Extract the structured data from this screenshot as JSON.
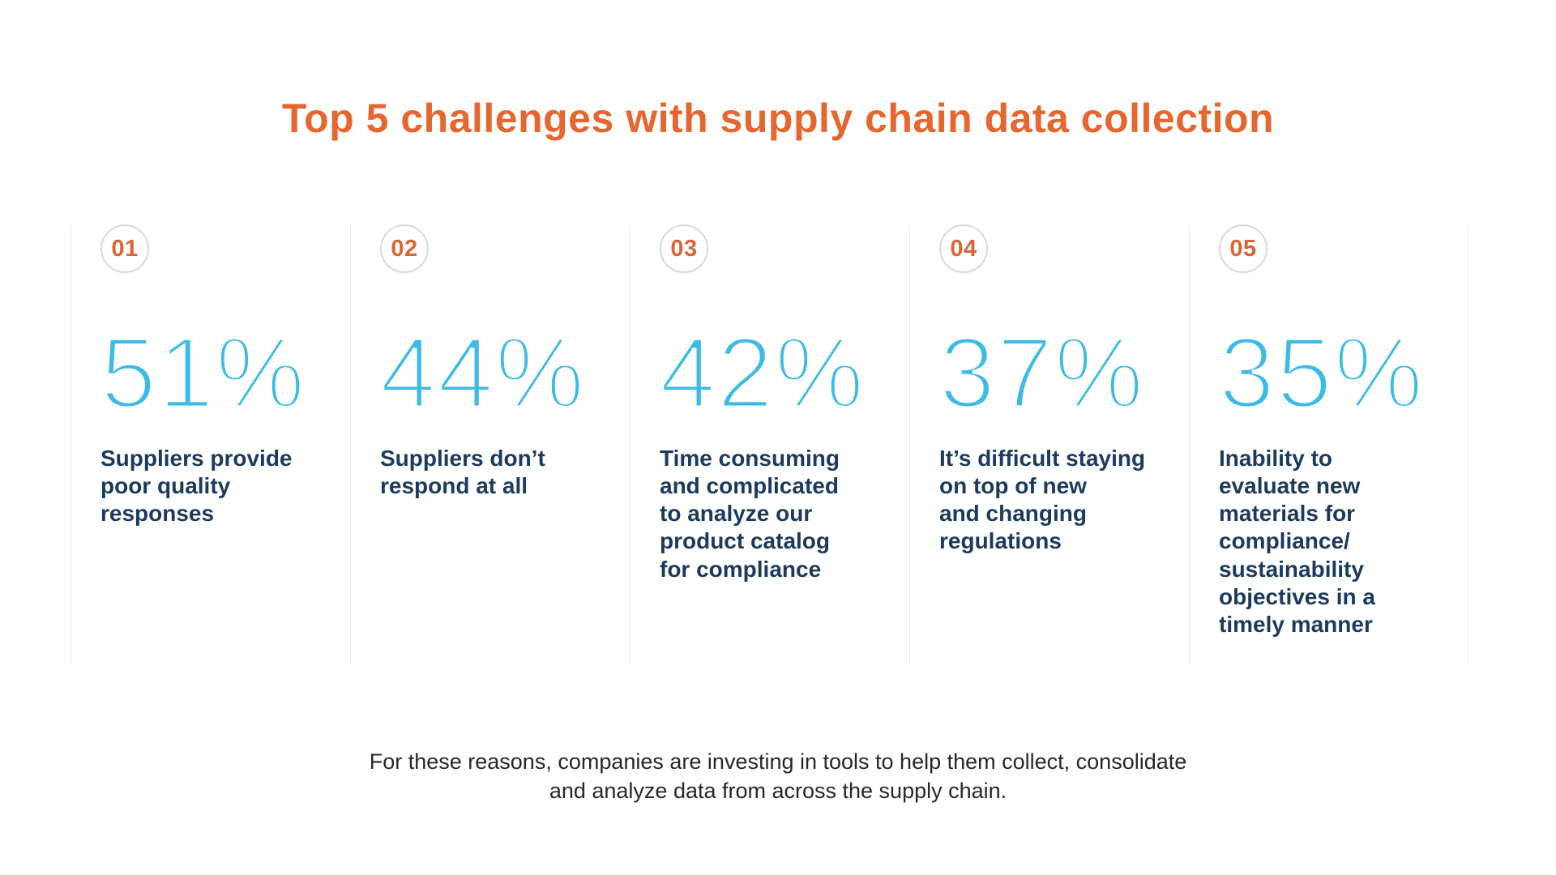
{
  "title": "Top 5 challenges with supply chain data collection",
  "colors": {
    "accent-orange": "#E5672F",
    "badge-orange": "#DC6434",
    "stat-blue": "#3DBAE6",
    "navy": "#1B3A5E",
    "divider": "#E9E9E9",
    "badge-border": "#D9D9D9",
    "footer-text": "#26272B",
    "bg": "#FFFFFF"
  },
  "challenges": [
    {
      "number": "01",
      "percent": "51%",
      "description": "Suppliers provide\npoor quality\nresponses"
    },
    {
      "number": "02",
      "percent": "44%",
      "description": "Suppliers don’t\nrespond at all"
    },
    {
      "number": "03",
      "percent": "42%",
      "description": "Time consuming\nand complicated\nto analyze our\nproduct catalog\nfor compliance"
    },
    {
      "number": "04",
      "percent": "37%",
      "description": "It’s difficult staying\non top of new\nand changing\nregulations"
    },
    {
      "number": "05",
      "percent": "35%",
      "description": "Inability to\nevaluate new\nmaterials for\ncompliance/\nsustainability\nobjectives in a\ntimely manner"
    }
  ],
  "footer": {
    "lines": [
      "For these reasons, companies are investing in tools to help them collect, consolidate",
      "and analyze data from across the supply chain."
    ]
  },
  "chart_data": {
    "type": "table",
    "title": "Top 5 challenges with supply chain data collection",
    "categories": [
      "Suppliers provide poor quality responses",
      "Suppliers don’t respond at all",
      "Time consuming and complicated to analyze our product catalog for compliance",
      "It’s difficult staying on top of new and changing regulations",
      "Inability to evaluate new materials for compliance/sustainability objectives in a timely manner"
    ],
    "ranks": [
      "01",
      "02",
      "03",
      "04",
      "05"
    ],
    "values": [
      51,
      44,
      42,
      37,
      35
    ],
    "unit": "%",
    "annotation": "For these reasons, companies are investing in tools to help them collect, consolidate and analyze data from across the supply chain."
  }
}
